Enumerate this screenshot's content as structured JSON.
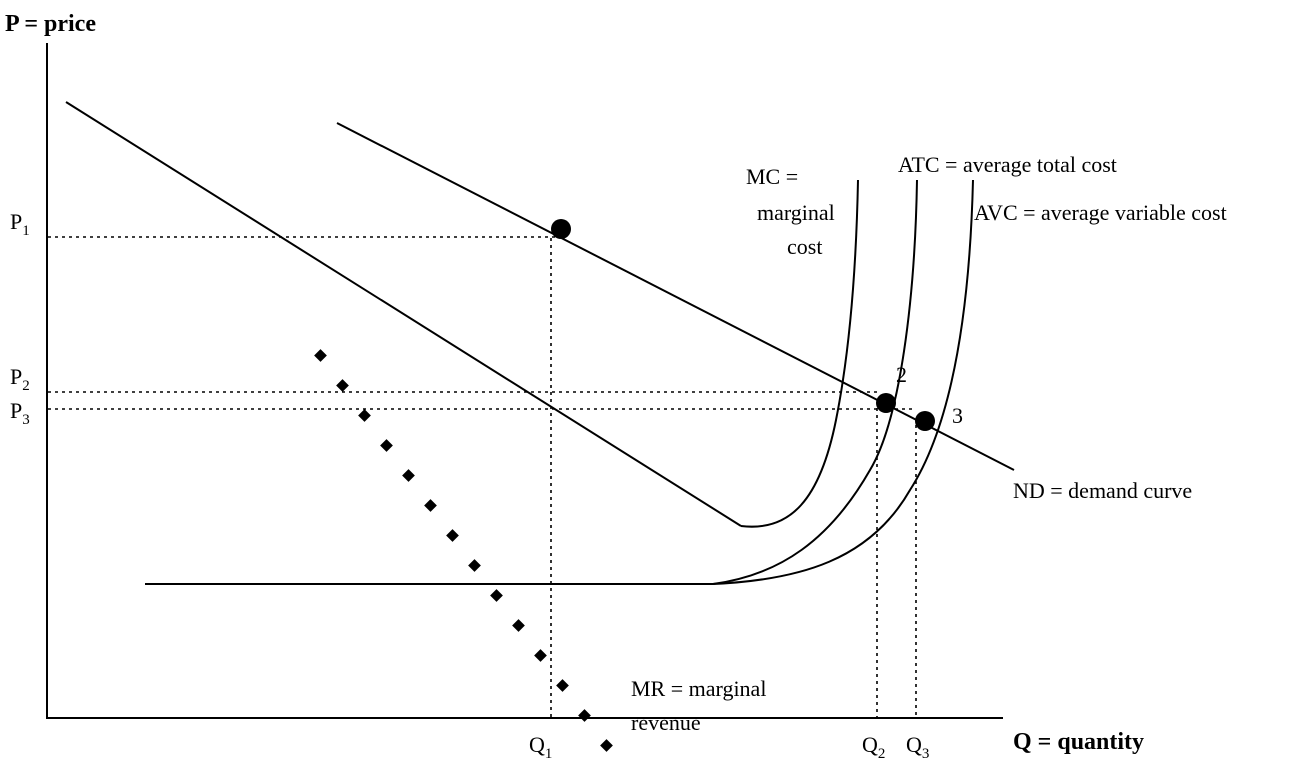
{
  "axes": {
    "y_title": "P = price",
    "x_title": "Q = quantity"
  },
  "ticks": {
    "p1": {
      "main": "P",
      "sub": "1"
    },
    "p2": {
      "main": "P",
      "sub": "2"
    },
    "p3": {
      "main": "P",
      "sub": "3"
    },
    "q1": {
      "main": "Q",
      "sub": "1"
    },
    "q2": {
      "main": "Q",
      "sub": "2"
    },
    "q3": {
      "main": "Q",
      "sub": "3"
    }
  },
  "curves": {
    "mc": {
      "line1": "MC =",
      "line2": "marginal",
      "line3": "cost"
    },
    "atc": {
      "label": "ATC = average total cost"
    },
    "avc": {
      "label": "AVC = average variable cost"
    },
    "nd": {
      "label": "ND = demand curve"
    },
    "mr": {
      "line1": "MR = marginal",
      "line2": "revenue"
    }
  },
  "points": {
    "two": "2",
    "three": "3"
  }
}
